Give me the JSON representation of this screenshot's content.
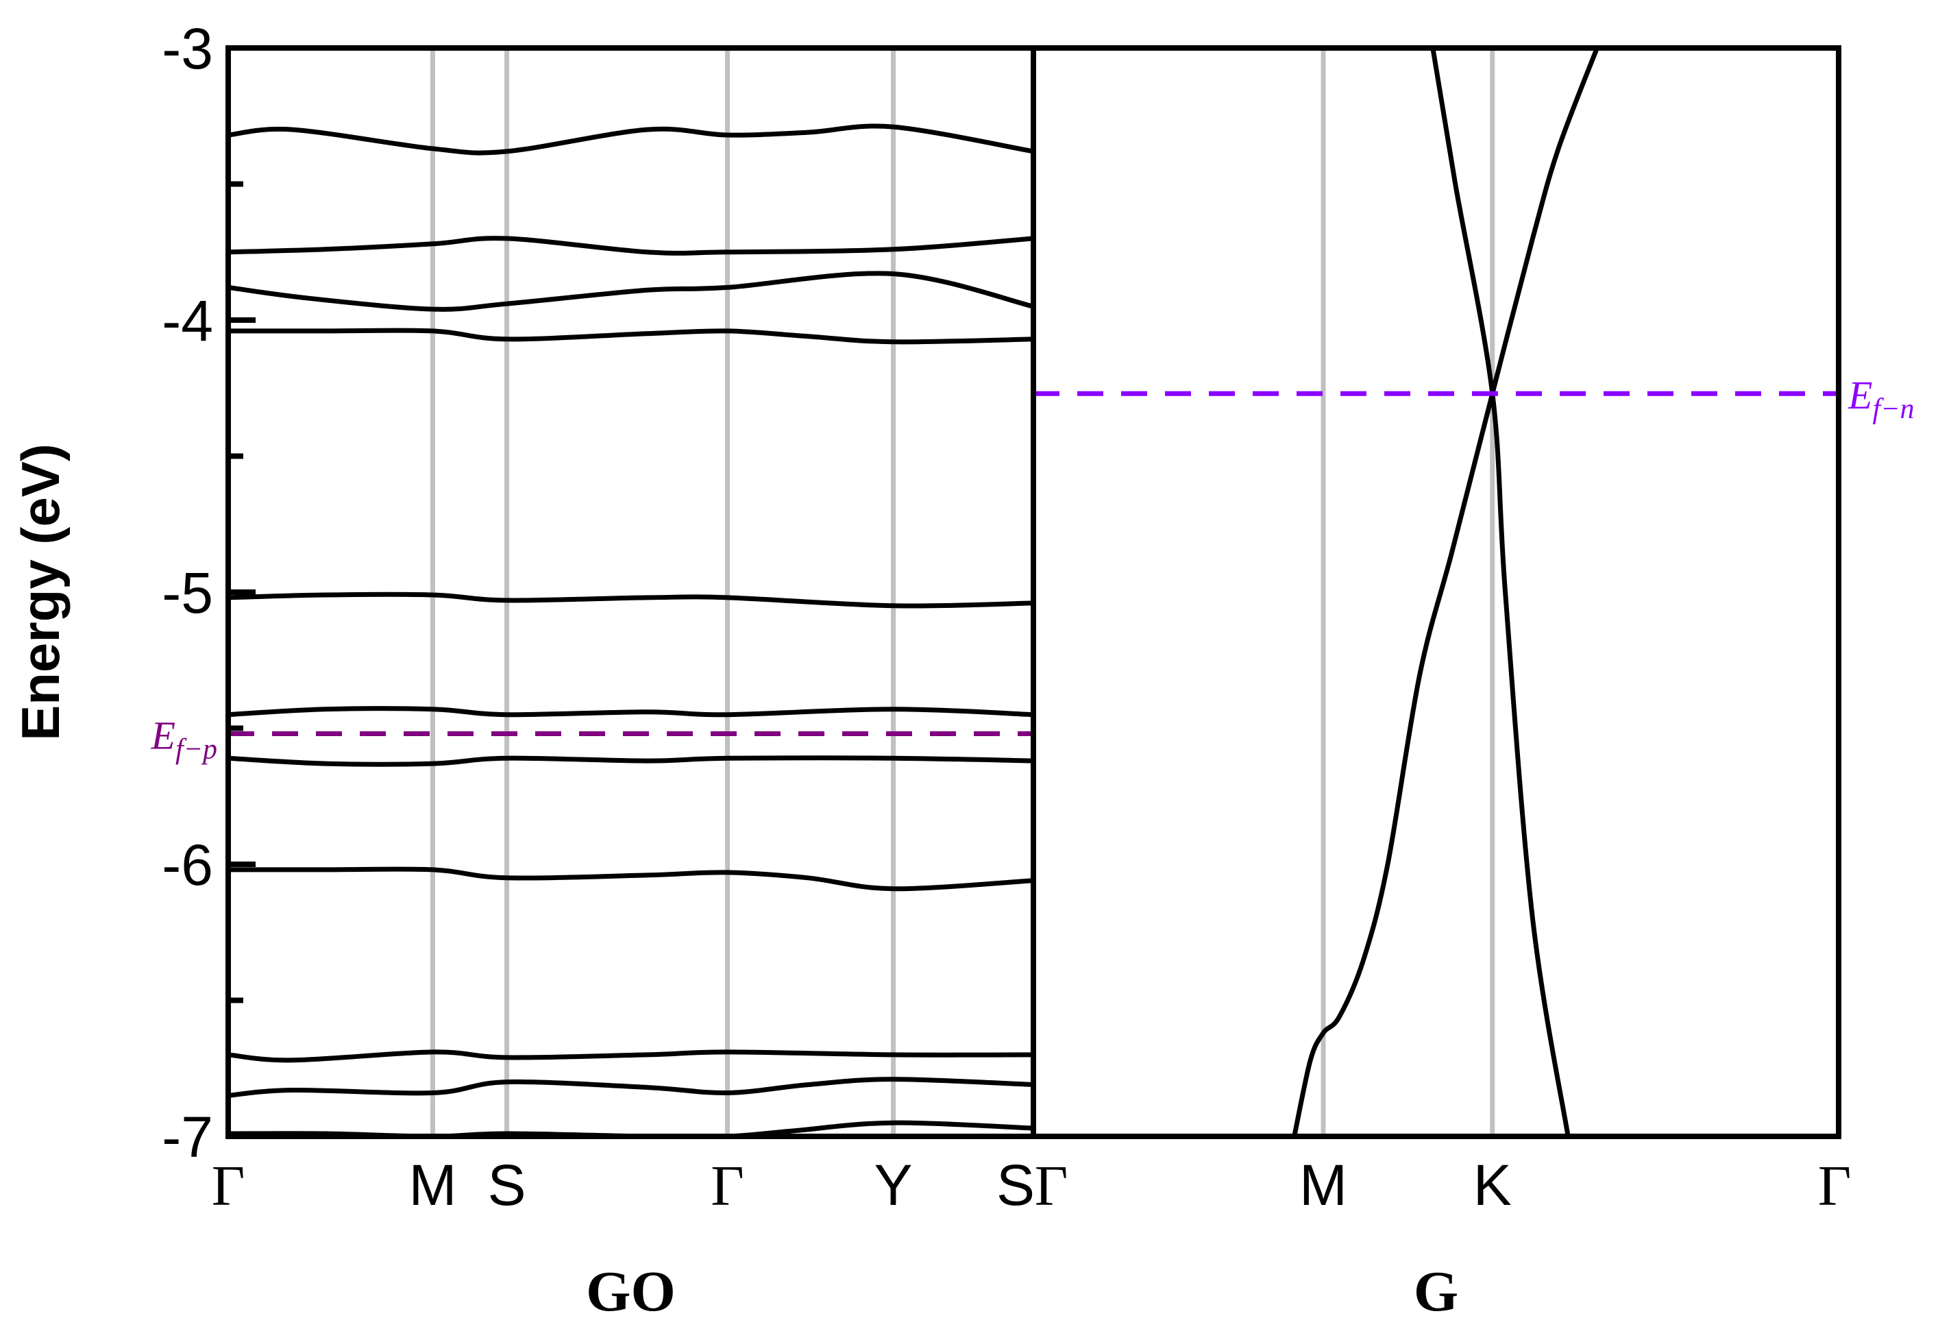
{
  "chart_data": {
    "type": "line",
    "title": "",
    "ylabel": "Energy (eV)",
    "ylim": [
      -7,
      -3
    ],
    "yticks": [
      "-3",
      "-4",
      "-5",
      "-6",
      "-7"
    ],
    "colors": {
      "band": "#000000",
      "kpoint_line": "#c0c0c0",
      "fermi_p": "#800080",
      "fermi_n": "#8b00ff"
    },
    "panels": [
      {
        "label": "GO",
        "x_domain": [
          0,
          5
        ],
        "kpoints": [
          {
            "name": "Γ",
            "x": 0
          },
          {
            "name": "M",
            "x": 1.27
          },
          {
            "name": "S",
            "x": 1.73
          },
          {
            "name": "Γ",
            "x": 3.1
          },
          {
            "name": "Y",
            "x": 4.13
          },
          {
            "name": "S",
            "x": 5
          }
        ],
        "fermi_level": {
          "label": "E",
          "subscript": "f−p",
          "energy": -5.52
        },
        "series": [
          {
            "name": "band-1",
            "x": [
              0,
              0.4,
              1.27,
              1.73,
              2.6,
              3.1,
              3.6,
              4.13,
              5
            ],
            "y": [
              -3.32,
              -3.3,
              -3.37,
              -3.38,
              -3.3,
              -3.32,
              -3.31,
              -3.29,
              -3.38
            ]
          },
          {
            "name": "band-2",
            "x": [
              0,
              0.6,
              1.27,
              1.73,
              2.6,
              3.1,
              4.13,
              5
            ],
            "y": [
              -3.75,
              -3.74,
              -3.72,
              -3.7,
              -3.75,
              -3.75,
              -3.74,
              -3.7
            ]
          },
          {
            "name": "band-3",
            "x": [
              0,
              0.5,
              1.27,
              1.73,
              2.6,
              3.1,
              4.13,
              5
            ],
            "y": [
              -3.88,
              -3.92,
              -3.96,
              -3.94,
              -3.89,
              -3.88,
              -3.83,
              -3.95
            ]
          },
          {
            "name": "band-4",
            "x": [
              0,
              0.6,
              1.27,
              1.73,
              2.6,
              3.1,
              3.6,
              4.13,
              5
            ],
            "y": [
              -4.04,
              -4.04,
              -4.04,
              -4.07,
              -4.05,
              -4.04,
              -4.06,
              -4.08,
              -4.07
            ]
          },
          {
            "name": "band-5",
            "x": [
              0,
              0.6,
              1.27,
              1.73,
              2.6,
              3.1,
              4.13,
              5
            ],
            "y": [
              -5.02,
              -5.01,
              -5.01,
              -5.03,
              -5.02,
              -5.02,
              -5.05,
              -5.04
            ]
          },
          {
            "name": "band-6",
            "x": [
              0,
              0.6,
              1.27,
              1.73,
              2.6,
              3.1,
              4.13,
              5
            ],
            "y": [
              -5.45,
              -5.43,
              -5.43,
              -5.45,
              -5.44,
              -5.45,
              -5.43,
              -5.45
            ]
          },
          {
            "name": "band-7",
            "x": [
              0,
              0.6,
              1.27,
              1.73,
              2.6,
              3.1,
              4.13,
              5
            ],
            "y": [
              -5.61,
              -5.63,
              -5.63,
              -5.61,
              -5.62,
              -5.61,
              -5.61,
              -5.62
            ]
          },
          {
            "name": "band-8",
            "x": [
              0,
              0.6,
              1.27,
              1.73,
              2.6,
              3.1,
              3.6,
              4.13,
              5
            ],
            "y": [
              -6.02,
              -6.02,
              -6.02,
              -6.05,
              -6.04,
              -6.03,
              -6.05,
              -6.09,
              -6.06
            ]
          },
          {
            "name": "band-9",
            "x": [
              0,
              0.4,
              1.27,
              1.73,
              2.6,
              3.1,
              4.13,
              5
            ],
            "y": [
              -6.7,
              -6.72,
              -6.69,
              -6.71,
              -6.7,
              -6.69,
              -6.7,
              -6.7
            ]
          },
          {
            "name": "band-10",
            "x": [
              0,
              0.4,
              1.27,
              1.73,
              2.6,
              3.1,
              3.6,
              4.13,
              5
            ],
            "y": [
              -6.85,
              -6.83,
              -6.84,
              -6.8,
              -6.82,
              -6.84,
              -6.81,
              -6.79,
              -6.81
            ]
          },
          {
            "name": "band-11",
            "x": [
              0,
              0.6,
              1.27,
              1.73,
              2.6,
              3.1,
              3.5,
              4.13,
              5
            ],
            "y": [
              -6.99,
              -6.99,
              -7.0,
              -6.99,
              -7.0,
              -7.0,
              -6.98,
              -6.95,
              -6.97
            ]
          }
        ]
      },
      {
        "label": "G",
        "x_domain": [
          0,
          5
        ],
        "kpoints": [
          {
            "name": "Γ",
            "x": 0
          },
          {
            "name": "M",
            "x": 1.8
          },
          {
            "name": "K",
            "x": 2.85
          },
          {
            "name": "Γ",
            "x": 5
          }
        ],
        "fermi_level": {
          "label": "E",
          "subscript": "f−n",
          "energy": -4.27
        },
        "series": [
          {
            "name": "pi-band",
            "x": [
              1.62,
              1.72,
              1.8,
              1.9,
              2.05,
              2.2,
              2.4,
              2.6,
              2.85,
              3.1,
              3.26,
              3.5
            ],
            "y": [
              -7.0,
              -6.72,
              -6.62,
              -6.56,
              -6.35,
              -6.0,
              -5.3,
              -4.85,
              -4.27,
              -3.7,
              -3.37,
              -3.0
            ]
          },
          {
            "name": "pi-star-band",
            "x": [
              2.48,
              2.62,
              2.85,
              2.93,
              3.1,
              3.32
            ],
            "y": [
              -3.0,
              -3.5,
              -4.27,
              -5.0,
              -6.2,
              -7.0
            ]
          }
        ]
      }
    ]
  }
}
